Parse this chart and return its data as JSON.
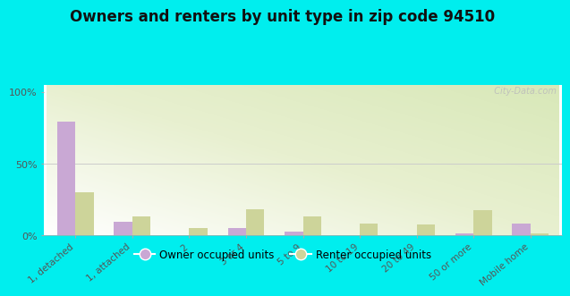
{
  "title": "Owners and renters by unit type in zip code 94510",
  "categories": [
    "1, detached",
    "1, attached",
    "2",
    "3 or 4",
    "5 to 9",
    "10 to 19",
    "20 to 49",
    "50 or more",
    "Mobile home"
  ],
  "owner_values": [
    79,
    9,
    0,
    5,
    2,
    0,
    0,
    1,
    8
  ],
  "renter_values": [
    30,
    13,
    5,
    18,
    13,
    8,
    7,
    17,
    1
  ],
  "owner_color": "#c9a8d4",
  "renter_color": "#cdd49a",
  "owner_label": "Owner occupied units",
  "renter_label": "Renter occupied units",
  "ylim": [
    0,
    105
  ],
  "yticks": [
    0,
    50,
    100
  ],
  "ytick_labels": [
    "0%",
    "50%",
    "100%"
  ],
  "outer_background": "#00eeee",
  "bar_width": 0.32,
  "title_fontsize": 12,
  "watermark": "  City-Data.com"
}
